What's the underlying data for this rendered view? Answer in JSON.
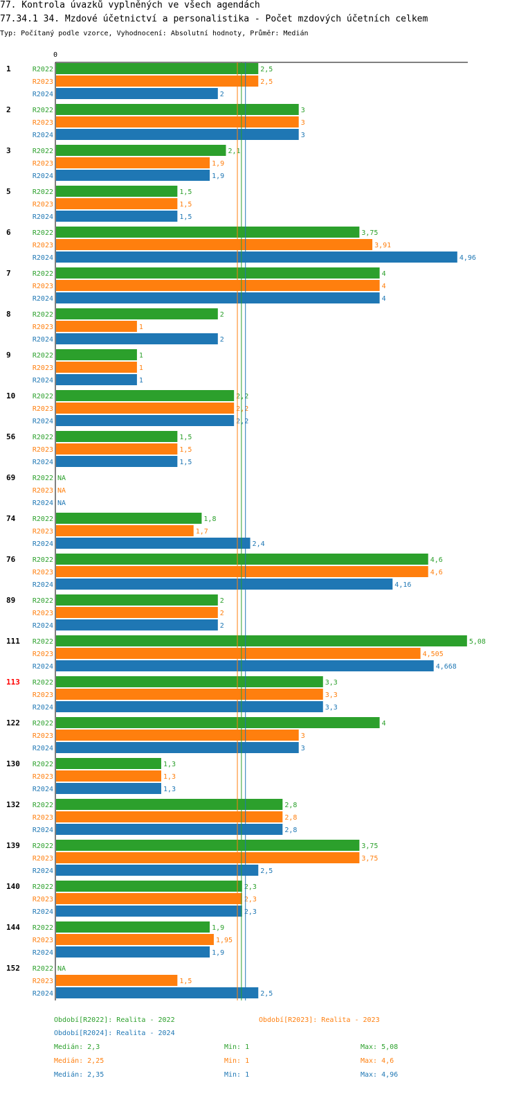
{
  "title": "77. Kontrola úvazků vyplněných ve všech agendách",
  "subtitle": "77.34.1 34. Mzdové účetnictví a personalistika - Počet mzdových účetních celkem",
  "meta": "Typ: Počítaný podle vzorce, Vyhodnocení: Absolutní hodnoty, Průměr: Medián",
  "colors": {
    "R2022": "#2ca02c",
    "R2023": "#ff7f0e",
    "R2024": "#1f77b4",
    "highlight": "#ff0000"
  },
  "chart_data": {
    "type": "bar",
    "orientation": "horizontal",
    "axis_zero_label": "0",
    "xlim": [
      0,
      5.08
    ],
    "highlighted_group": "113",
    "series_names": [
      "R2022",
      "R2023",
      "R2024"
    ],
    "groups": [
      {
        "label": "1",
        "values": [
          2.5,
          2.5,
          2
        ],
        "labels": [
          "2,5",
          "2,5",
          "2"
        ]
      },
      {
        "label": "2",
        "values": [
          3,
          3,
          3
        ],
        "labels": [
          "3",
          "3",
          "3"
        ]
      },
      {
        "label": "3",
        "values": [
          2.1,
          1.9,
          1.9
        ],
        "labels": [
          "2,1",
          "1,9",
          "1,9"
        ]
      },
      {
        "label": "5",
        "values": [
          1.5,
          1.5,
          1.5
        ],
        "labels": [
          "1,5",
          "1,5",
          "1,5"
        ]
      },
      {
        "label": "6",
        "values": [
          3.75,
          3.91,
          4.96
        ],
        "labels": [
          "3,75",
          "3,91",
          "4,96"
        ]
      },
      {
        "label": "7",
        "values": [
          4,
          4,
          4
        ],
        "labels": [
          "4",
          "4",
          "4"
        ]
      },
      {
        "label": "8",
        "values": [
          2,
          1,
          2
        ],
        "labels": [
          "2",
          "1",
          "2"
        ]
      },
      {
        "label": "9",
        "values": [
          1,
          1,
          1
        ],
        "labels": [
          "1",
          "1",
          "1"
        ]
      },
      {
        "label": "10",
        "values": [
          2.2,
          2.2,
          2.2
        ],
        "labels": [
          "2,2",
          "2,2",
          "2,2"
        ]
      },
      {
        "label": "56",
        "values": [
          1.5,
          1.5,
          1.5
        ],
        "labels": [
          "1,5",
          "1,5",
          "1,5"
        ]
      },
      {
        "label": "69",
        "values": [
          null,
          null,
          null
        ],
        "labels": [
          "NA",
          "NA",
          "NA"
        ]
      },
      {
        "label": "74",
        "values": [
          1.8,
          1.7,
          2.4
        ],
        "labels": [
          "1,8",
          "1,7",
          "2,4"
        ]
      },
      {
        "label": "76",
        "values": [
          4.6,
          4.6,
          4.16
        ],
        "labels": [
          "4,6",
          "4,6",
          "4,16"
        ]
      },
      {
        "label": "89",
        "values": [
          2,
          2,
          2
        ],
        "labels": [
          "2",
          "2",
          "2"
        ]
      },
      {
        "label": "111",
        "values": [
          5.08,
          4.505,
          4.668
        ],
        "labels": [
          "5,08",
          "4,505",
          "4,668"
        ]
      },
      {
        "label": "113",
        "values": [
          3.3,
          3.3,
          3.3
        ],
        "labels": [
          "3,3",
          "3,3",
          "3,3"
        ]
      },
      {
        "label": "122",
        "values": [
          4,
          3,
          3
        ],
        "labels": [
          "4",
          "3",
          "3"
        ]
      },
      {
        "label": "130",
        "values": [
          1.3,
          1.3,
          1.3
        ],
        "labels": [
          "1,3",
          "1,3",
          "1,3"
        ]
      },
      {
        "label": "132",
        "values": [
          2.8,
          2.8,
          2.8
        ],
        "labels": [
          "2,8",
          "2,8",
          "2,8"
        ]
      },
      {
        "label": "139",
        "values": [
          3.75,
          3.75,
          2.5
        ],
        "labels": [
          "3,75",
          "3,75",
          "2,5"
        ]
      },
      {
        "label": "140",
        "values": [
          2.3,
          2.3,
          2.3
        ],
        "labels": [
          "2,3",
          "2,3",
          "2,3"
        ]
      },
      {
        "label": "144",
        "values": [
          1.9,
          1.95,
          1.9
        ],
        "labels": [
          "1,9",
          "1,95",
          "1,9"
        ]
      },
      {
        "label": "152",
        "values": [
          null,
          1.5,
          2.5
        ],
        "labels": [
          "NA",
          "1,5",
          "2,5"
        ]
      }
    ],
    "median_lines": [
      2.3,
      2.25,
      2.35
    ],
    "legend": [
      "Období[R2022]: Realita - 2022",
      "Období[R2023]: Realita - 2023",
      "Období[R2024]: Realita - 2024"
    ],
    "stats": [
      {
        "median": "Medián: 2,3",
        "min": "Min: 1",
        "max": "Max: 5,08"
      },
      {
        "median": "Medián: 2,25",
        "min": "Min: 1",
        "max": "Max: 4,6"
      },
      {
        "median": "Medián: 2,35",
        "min": "Min: 1",
        "max": "Max: 4,96"
      }
    ]
  }
}
